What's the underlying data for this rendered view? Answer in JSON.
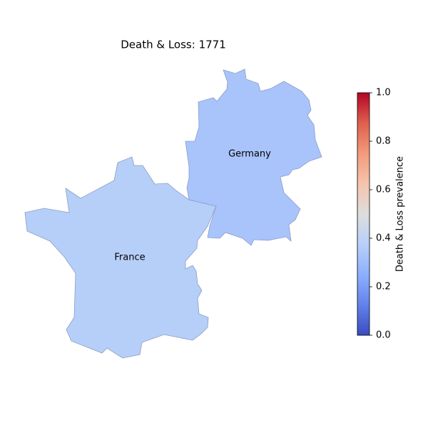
{
  "title": "Death & Loss: 1771",
  "colormap": "coolwarm",
  "regions": [
    {
      "name": "France",
      "value": 0.37
    },
    {
      "name": "Germany",
      "value": 0.33
    }
  ],
  "colorbar": {
    "label": "Death & Loss prevalence",
    "lim": [
      0,
      1
    ],
    "ticks": [
      {
        "value": 0,
        "label": "0.0"
      },
      {
        "value": 0.2,
        "label": "0.2"
      },
      {
        "value": 0.4,
        "label": "0.4"
      },
      {
        "value": 0.6,
        "label": "0.6"
      },
      {
        "value": 0.8,
        "label": "0.8"
      },
      {
        "value": 1,
        "label": "1.0"
      }
    ]
  }
}
